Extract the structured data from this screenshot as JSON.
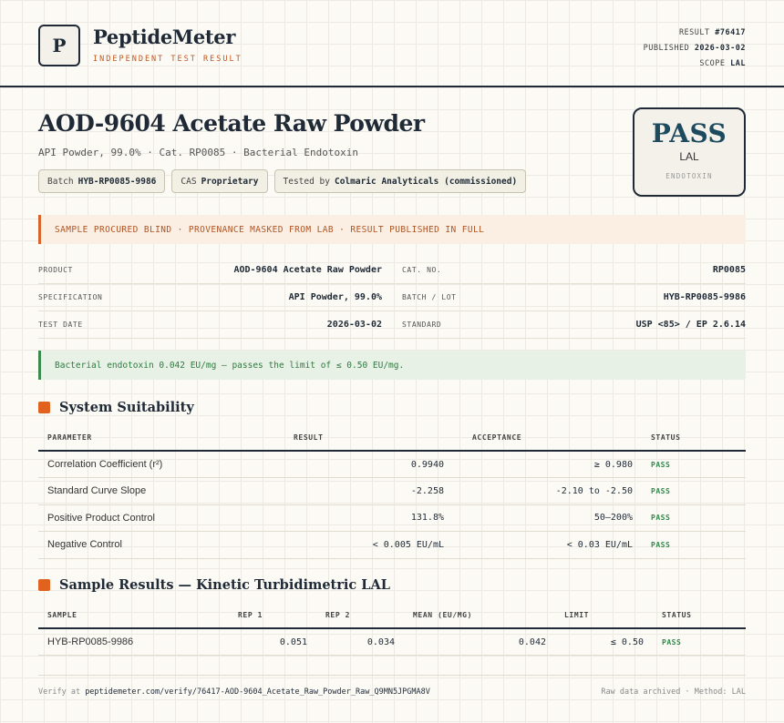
{
  "brand": {
    "logo_letter": "P",
    "name": "PeptideMeter",
    "tagline": "INDEPENDENT TEST RESULT"
  },
  "meta": {
    "result_label": "RESULT",
    "result_value": "#76417",
    "published_label": "PUBLISHED",
    "published_value": "2026-03-02",
    "scope_label": "SCOPE",
    "scope_value": "LAL"
  },
  "title": "AOD-9604 Acetate Raw Powder",
  "subtitle": "API Powder, 99.0% · Cat. RP0085 · Bacterial Endotoxin",
  "chips": [
    {
      "label": "Batch",
      "value": "HYB-RP0085-9986"
    },
    {
      "label": "CAS",
      "value": "Proprietary"
    },
    {
      "label": "Tested by",
      "value": "Colmaric Analyticals (commissioned)"
    }
  ],
  "verdict": {
    "big": "PASS",
    "method": "LAL",
    "test": "ENDOTOXIN"
  },
  "notice": "SAMPLE PROCURED BLIND · PROVENANCE MASKED FROM LAB · RESULT PUBLISHED IN FULL",
  "info": [
    {
      "l1": "PRODUCT",
      "v1": "AOD-9604 Acetate Raw Powder",
      "l2": "CAT. NO.",
      "v2": "RP0085"
    },
    {
      "l1": "SPECIFICATION",
      "v1": "API Powder, 99.0%",
      "l2": "BATCH / LOT",
      "v2": "HYB-RP0085-9986"
    },
    {
      "l1": "TEST DATE",
      "v1": "2026-03-02",
      "l2": "STANDARD",
      "v2": "USP <85> / EP 2.6.14"
    }
  ],
  "result_summary": "Bacterial endotoxin 0.042 EU/mg — passes the limit of ≤ 0.50 EU/mg.",
  "suitability": {
    "title": "System Suitability",
    "headers": [
      "PARAMETER",
      "RESULT",
      "ACCEPTANCE",
      "STATUS"
    ],
    "rows": [
      {
        "param": "Correlation Coefficient (r²)",
        "result": "0.9940",
        "acceptance": "≥ 0.980",
        "status": "PASS"
      },
      {
        "param": "Standard Curve Slope",
        "result": "-2.258",
        "acceptance": "-2.10 to -2.50",
        "status": "PASS"
      },
      {
        "param": "Positive Product Control",
        "result": "131.8%",
        "acceptance": "50–200%",
        "status": "PASS"
      },
      {
        "param": "Negative Control",
        "result": "< 0.005 EU/mL",
        "acceptance": "< 0.03 EU/mL",
        "status": "PASS"
      }
    ]
  },
  "samples": {
    "title": "Sample Results — Kinetic Turbidimetric LAL",
    "headers": [
      "SAMPLE",
      "REP 1",
      "REP 2",
      "MEAN (EU/MG)",
      "LIMIT",
      "STATUS"
    ],
    "rows": [
      {
        "sample": "HYB-RP0085-9986",
        "rep1": "0.051",
        "rep2": "0.034",
        "mean": "0.042",
        "limit": "≤ 0.50",
        "status": "PASS"
      }
    ]
  },
  "footer": {
    "verify_label": "Verify at",
    "verify_url": "peptidemeter.com/verify/76417-AOD-9604_Acetate_Raw_Powder_Raw_Q9MN5JPGMA8V",
    "right": "Raw data archived · Method: LAL"
  }
}
